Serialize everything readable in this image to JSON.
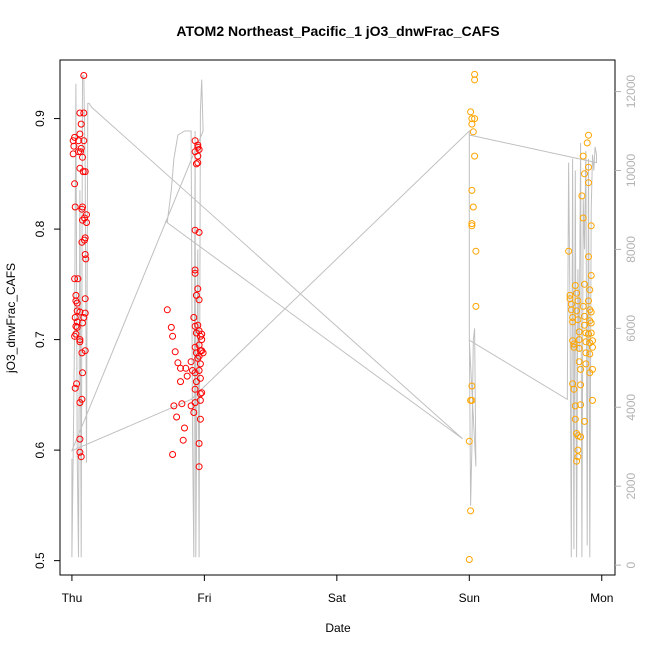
{
  "chart_data": {
    "type": "scatter",
    "title": "ATOM2 Northeast_Pacific_1 jO3_dnwFrac_CAFS",
    "xlabel": "Date",
    "ylabel": "jO3_dnwFrac_CAFS",
    "x_ticks": [
      "Thu",
      "Fri",
      "Sat",
      "Sun",
      "Mon"
    ],
    "y_ticks": [
      "0.5",
      "0.6",
      "0.7",
      "0.8",
      "0.9"
    ],
    "y_right_ticks": [
      "0",
      "2000",
      "4000",
      "6000",
      "8000",
      "10000",
      "12000"
    ],
    "x_range_days": [
      -0.09,
      4.1
    ],
    "y_range": [
      0.487,
      0.953
    ],
    "y_right_range": [
      -250,
      12800
    ],
    "colors": {
      "series1": "#ff0000",
      "series2": "#ffa500",
      "altitude_line": "#c0c0c0",
      "right_axis": "#b3b3b3"
    },
    "series": [
      {
        "color": "#ff0000",
        "points": [
          [
            0.01,
            0.88
          ],
          [
            0.015,
            0.875
          ],
          [
            0.02,
            0.883
          ],
          [
            0.01,
            0.868
          ],
          [
            0.02,
            0.841
          ],
          [
            0.025,
            0.82
          ],
          [
            0.02,
            0.755
          ],
          [
            0.03,
            0.74
          ],
          [
            0.03,
            0.735
          ],
          [
            0.025,
            0.72
          ],
          [
            0.03,
            0.712
          ],
          [
            0.03,
            0.705
          ],
          [
            0.02,
            0.703
          ],
          [
            0.025,
            0.656
          ],
          [
            0.04,
            0.726
          ],
          [
            0.04,
            0.716
          ],
          [
            0.04,
            0.733
          ],
          [
            0.045,
            0.755
          ],
          [
            0.035,
            0.66
          ],
          [
            0.04,
            0.711
          ],
          [
            0.05,
            0.87
          ],
          [
            0.05,
            0.88
          ],
          [
            0.06,
            0.905
          ],
          [
            0.06,
            0.886
          ],
          [
            0.065,
            0.87
          ],
          [
            0.06,
            0.855
          ],
          [
            0.06,
            0.725
          ],
          [
            0.06,
            0.7
          ],
          [
            0.06,
            0.698
          ],
          [
            0.06,
            0.643
          ],
          [
            0.06,
            0.61
          ],
          [
            0.06,
            0.598
          ],
          [
            0.07,
            0.895
          ],
          [
            0.07,
            0.873
          ],
          [
            0.08,
            0.865
          ],
          [
            0.085,
            0.852
          ],
          [
            0.08,
            0.82
          ],
          [
            0.075,
            0.818
          ],
          [
            0.08,
            0.808
          ],
          [
            0.075,
            0.788
          ],
          [
            0.08,
            0.715
          ],
          [
            0.075,
            0.688
          ],
          [
            0.08,
            0.67
          ],
          [
            0.075,
            0.646
          ],
          [
            0.07,
            0.594
          ],
          [
            0.09,
            0.905
          ],
          [
            0.09,
            0.88
          ],
          [
            0.1,
            0.852
          ],
          [
            0.095,
            0.81
          ],
          [
            0.1,
            0.792
          ],
          [
            0.095,
            0.79
          ],
          [
            0.1,
            0.777
          ],
          [
            0.105,
            0.773
          ],
          [
            0.1,
            0.737
          ],
          [
            0.1,
            0.724
          ],
          [
            0.1,
            0.69
          ],
          [
            0.09,
            0.72
          ],
          [
            0.11,
            0.813
          ],
          [
            0.11,
            0.806
          ],
          [
            0.09,
            0.939
          ],
          [
            0.72,
            0.727
          ],
          [
            0.75,
            0.711
          ],
          [
            0.76,
            0.703
          ],
          [
            0.78,
            0.689
          ],
          [
            0.77,
            0.64
          ],
          [
            0.79,
            0.63
          ],
          [
            0.76,
            0.596
          ],
          [
            0.8,
            0.679
          ],
          [
            0.82,
            0.674
          ],
          [
            0.82,
            0.662
          ],
          [
            0.83,
            0.642
          ],
          [
            0.85,
            0.62
          ],
          [
            0.84,
            0.609
          ],
          [
            0.86,
            0.674
          ],
          [
            0.87,
            0.667
          ],
          [
            0.9,
            0.68
          ],
          [
            0.91,
            0.672
          ],
          [
            0.9,
            0.64
          ],
          [
            0.92,
            0.634
          ],
          [
            0.93,
            0.643
          ],
          [
            0.93,
            0.87
          ],
          [
            0.93,
            0.88
          ],
          [
            0.94,
            0.859
          ],
          [
            0.93,
            0.799
          ],
          [
            0.93,
            0.76
          ],
          [
            0.93,
            0.763
          ],
          [
            0.94,
            0.74
          ],
          [
            0.92,
            0.72
          ],
          [
            0.93,
            0.712
          ],
          [
            0.94,
            0.706
          ],
          [
            0.93,
            0.693
          ],
          [
            0.94,
            0.688
          ],
          [
            0.95,
            0.683
          ],
          [
            0.93,
            0.67
          ],
          [
            0.94,
            0.662
          ],
          [
            0.93,
            0.655
          ],
          [
            0.95,
            0.876
          ],
          [
            0.95,
            0.874
          ],
          [
            0.96,
            0.872
          ],
          [
            0.95,
            0.866
          ],
          [
            0.95,
            0.86
          ],
          [
            0.96,
            0.797
          ],
          [
            0.95,
            0.746
          ],
          [
            0.96,
            0.736
          ],
          [
            0.95,
            0.713
          ],
          [
            0.96,
            0.708
          ],
          [
            0.97,
            0.703
          ],
          [
            0.96,
            0.695
          ],
          [
            0.97,
            0.69
          ],
          [
            0.96,
            0.685
          ],
          [
            0.97,
            0.678
          ],
          [
            0.96,
            0.672
          ],
          [
            0.97,
            0.665
          ],
          [
            0.97,
            0.651
          ],
          [
            0.97,
            0.645
          ],
          [
            0.97,
            0.628
          ],
          [
            0.96,
            0.606
          ],
          [
            0.96,
            0.585
          ],
          [
            0.98,
            0.705
          ],
          [
            0.98,
            0.69
          ],
          [
            0.99,
            0.688
          ],
          [
            0.98,
            0.7
          ],
          [
            0.98,
            0.652
          ]
        ]
      },
      {
        "color": "#ffa500",
        "points": [
          [
            3.0,
            0.501
          ],
          [
            3.01,
            0.545
          ],
          [
            3.0,
            0.608
          ],
          [
            3.02,
            0.645
          ],
          [
            3.01,
            0.645
          ],
          [
            3.02,
            0.658
          ],
          [
            3.02,
            0.835
          ],
          [
            3.03,
            0.82
          ],
          [
            3.02,
            0.805
          ],
          [
            3.02,
            0.803
          ],
          [
            3.01,
            0.906
          ],
          [
            3.02,
            0.9
          ],
          [
            3.02,
            0.895
          ],
          [
            3.03,
            0.888
          ],
          [
            3.04,
            0.94
          ],
          [
            3.04,
            0.935
          ],
          [
            3.04,
            0.9
          ],
          [
            3.04,
            0.866
          ],
          [
            3.05,
            0.78
          ],
          [
            3.05,
            0.73
          ],
          [
            3.75,
            0.78
          ],
          [
            3.76,
            0.74
          ],
          [
            3.76,
            0.737
          ],
          [
            3.77,
            0.732
          ],
          [
            3.77,
            0.727
          ],
          [
            3.78,
            0.72
          ],
          [
            3.78,
            0.716
          ],
          [
            3.78,
            0.699
          ],
          [
            3.79,
            0.696
          ],
          [
            3.79,
            0.693
          ],
          [
            3.78,
            0.66
          ],
          [
            3.79,
            0.655
          ],
          [
            3.8,
            0.64
          ],
          [
            3.8,
            0.628
          ],
          [
            3.81,
            0.615
          ],
          [
            3.82,
            0.613
          ],
          [
            3.82,
            0.6
          ],
          [
            3.82,
            0.594
          ],
          [
            3.81,
            0.59
          ],
          [
            3.8,
            0.749
          ],
          [
            3.81,
            0.742
          ],
          [
            3.82,
            0.735
          ],
          [
            3.81,
            0.726
          ],
          [
            3.82,
            0.718
          ],
          [
            3.83,
            0.707
          ],
          [
            3.83,
            0.7
          ],
          [
            3.83,
            0.692
          ],
          [
            3.83,
            0.68
          ],
          [
            3.84,
            0.673
          ],
          [
            3.84,
            0.659
          ],
          [
            3.84,
            0.641
          ],
          [
            3.84,
            0.612
          ],
          [
            3.85,
            0.83
          ],
          [
            3.86,
            0.81
          ],
          [
            3.86,
            0.866
          ],
          [
            3.87,
            0.85
          ],
          [
            3.87,
            0.75
          ],
          [
            3.86,
            0.73
          ],
          [
            3.87,
            0.721
          ],
          [
            3.87,
            0.713
          ],
          [
            3.88,
            0.706
          ],
          [
            3.88,
            0.698
          ],
          [
            3.88,
            0.688
          ],
          [
            3.88,
            0.678
          ],
          [
            3.87,
            0.626
          ],
          [
            3.89,
            0.878
          ],
          [
            3.9,
            0.885
          ],
          [
            3.9,
            0.856
          ],
          [
            3.9,
            0.842
          ],
          [
            3.9,
            0.775
          ],
          [
            3.91,
            0.745
          ],
          [
            3.9,
            0.735
          ],
          [
            3.91,
            0.727
          ],
          [
            3.91,
            0.717
          ],
          [
            3.9,
            0.705
          ],
          [
            3.91,
            0.697
          ],
          [
            3.91,
            0.687
          ],
          [
            3.91,
            0.67
          ],
          [
            3.92,
            0.803
          ],
          [
            3.92,
            0.758
          ],
          [
            3.92,
            0.725
          ],
          [
            3.92,
            0.715
          ],
          [
            3.92,
            0.706
          ],
          [
            3.93,
            0.699
          ],
          [
            3.93,
            0.693
          ],
          [
            3.93,
            0.673
          ],
          [
            3.93,
            0.645
          ]
        ]
      }
    ],
    "altitude_line": {
      "color": "#c0c0c0",
      "points": [
        [
          0.0,
          2700
        ],
        [
          0.0,
          200
        ],
        [
          0.01,
          2800
        ],
        [
          0.02,
          6000
        ],
        [
          0.03,
          12200
        ],
        [
          0.04,
          2800
        ],
        [
          0.05,
          200
        ],
        [
          0.06,
          9500
        ],
        [
          0.07,
          200
        ],
        [
          0.08,
          12400
        ],
        [
          0.09,
          12400
        ],
        [
          0.1,
          10000
        ],
        [
          0.11,
          2600
        ],
        [
          0.12,
          11700
        ],
        [
          0.13,
          11700
        ],
        [
          0.15,
          11600
        ],
        [
          2.95,
          3200
        ],
        [
          0.71,
          8700
        ],
        [
          0.72,
          8700
        ],
        [
          0.75,
          9500
        ],
        [
          0.77,
          10300
        ],
        [
          0.8,
          10900
        ],
        [
          0.85,
          11000
        ],
        [
          0.9,
          11000
        ],
        [
          0.91,
          3400
        ],
        [
          0.92,
          200
        ],
        [
          0.93,
          11000
        ],
        [
          0.935,
          200
        ],
        [
          0.94,
          2400
        ],
        [
          0.95,
          8000
        ],
        [
          0.96,
          200
        ],
        [
          0.97,
          11500
        ],
        [
          0.98,
          12300
        ],
        [
          0.99,
          11000
        ],
        [
          0.0,
          2900
        ],
        [
          0.9,
          4200
        ],
        [
          3.0,
          11000
        ],
        [
          3.0,
          6000
        ],
        [
          3.01,
          1500
        ],
        [
          3.02,
          3000
        ],
        [
          3.03,
          5700
        ],
        [
          3.04,
          6000
        ],
        [
          3.05,
          2500
        ],
        [
          3.0,
          5700
        ],
        [
          3.74,
          4200
        ],
        [
          3.75,
          10200
        ],
        [
          3.76,
          6600
        ],
        [
          3.77,
          200
        ],
        [
          3.78,
          10300
        ],
        [
          3.79,
          400
        ],
        [
          3.8,
          10000
        ],
        [
          3.81,
          200
        ],
        [
          3.82,
          7500
        ],
        [
          3.83,
          5400
        ],
        [
          3.84,
          10700
        ],
        [
          3.85,
          200
        ],
        [
          3.86,
          9300
        ],
        [
          3.87,
          8000
        ],
        [
          3.88,
          10500
        ],
        [
          3.89,
          500
        ],
        [
          3.9,
          10300
        ],
        [
          3.91,
          200
        ],
        [
          3.92,
          9000
        ],
        [
          3.93,
          10400
        ],
        [
          3.94,
          10000
        ],
        [
          3.95,
          10600
        ],
        [
          3.96,
          10400
        ],
        [
          3.96,
          10200
        ],
        [
          3.0,
          10900
        ]
      ]
    }
  }
}
